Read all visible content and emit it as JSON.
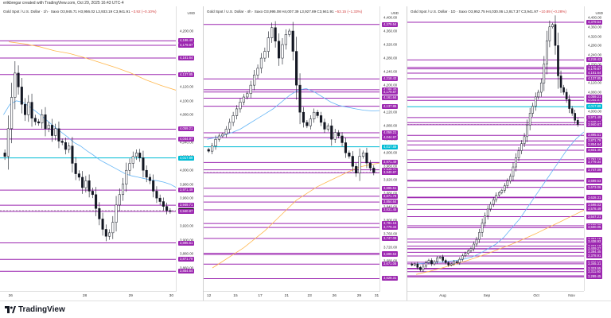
{
  "header": {
    "watermark": "erikbregar created with TradingView.com, Oct 29, 2025 16:43 UTC-4"
  },
  "footer": {
    "logo_text": "TradingView"
  },
  "colors": {
    "level_line": "#9c27b0",
    "level_badge": "#9c27b0",
    "price_badge": "#000000",
    "cyan_level": "#00bcd4",
    "ma_blue": "#64b5f6",
    "ma_orange": "#ffb74d",
    "candle": "#131722"
  },
  "panes": [
    {
      "title_symbol": "Gold Spot / U.S. Dollar · 1h · Saxo",
      "title_values": "O3,945.71 H3,956.02 L3,933.19 C3,941.91",
      "title_change": "−3.92 (−0.10%)",
      "currency": "USD",
      "y_min": 3840,
      "y_max": 4220,
      "yticks": [
        "4,200.00",
        "4,180.00",
        "4,160.00",
        "4,140.00",
        "4,120.00",
        "4,100.00",
        "4,080.00",
        "4,060.00",
        "4,040.00",
        "4,020.00",
        "4,000.00",
        "3,980.00",
        "3,960.00",
        "3,940.00",
        "3,920.00",
        "3,900.00",
        "3,880.00",
        "3,860.00"
      ],
      "ytick_values": [
        4200,
        4180,
        4160,
        4140,
        4120,
        4100,
        4080,
        4060,
        4040,
        4020,
        4000,
        3980,
        3960,
        3940,
        3920,
        3900,
        3880,
        3860
      ],
      "xticks": [
        "26",
        "28",
        "29",
        "30"
      ],
      "xtick_fracs": [
        0.06,
        0.48,
        0.74,
        0.97
      ],
      "levels": [
        {
          "label": "4,186.40",
          "value": 4186.4,
          "kind": "purple"
        },
        {
          "label": "4,179.87",
          "value": 4179.87,
          "kind": "purple"
        },
        {
          "label": "4,161.64",
          "value": 4161.64,
          "kind": "purple"
        },
        {
          "label": "4,137.85",
          "value": 4137.85,
          "kind": "purple"
        },
        {
          "label": "4,059.21",
          "value": 4059.21,
          "kind": "purple"
        },
        {
          "label": "4,044.97",
          "value": 4044.97,
          "kind": "purple"
        },
        {
          "label": "4,017.89",
          "value": 4017.89,
          "kind": "cyan"
        },
        {
          "label": "3,971.49",
          "value": 3971.49,
          "kind": "purple"
        },
        {
          "label": "3,949.71",
          "value": 3949.71,
          "kind": "purple"
        },
        {
          "label": "3,941.91",
          "value": 3941.91,
          "kind": "price"
        },
        {
          "label": "3,940.87",
          "value": 3940.87,
          "kind": "purple"
        },
        {
          "label": "3,895.51",
          "value": 3895.51,
          "kind": "purple"
        },
        {
          "label": "3,871.79",
          "value": 3871.79,
          "kind": "purple"
        },
        {
          "label": "3,854.64",
          "value": 3854.64,
          "kind": "purple"
        }
      ],
      "candles": [
        4020,
        4060,
        4105,
        4140,
        4120,
        4095,
        4080,
        4098,
        4075,
        4070,
        4068,
        4080,
        4060,
        4065,
        4050,
        4060,
        4042,
        4040,
        4030,
        4035,
        4010,
        3995,
        3990,
        3975,
        3985,
        3970,
        3965,
        3945,
        3930,
        3915,
        3905,
        3910,
        3925,
        3950,
        3965,
        3980,
        4000,
        4010,
        4020,
        4025,
        4018,
        4000,
        3990,
        3985,
        3970,
        3960,
        3955,
        3948,
        3942,
        3941
      ],
      "ma_blue": [
        4080,
        4095,
        4100,
        4098,
        4092,
        4085,
        4078,
        4070,
        4062,
        4055,
        4048,
        4040,
        4035,
        4028,
        4022,
        4015,
        4010,
        4005,
        4000,
        3995,
        3992,
        3990,
        3988,
        3986,
        3985,
        3983,
        3980,
        3975
      ],
      "ma_orange": [
        4185,
        4182,
        4178,
        4172,
        4168,
        4162,
        4155,
        4148,
        4140,
        4130,
        4122,
        4115
      ]
    },
    {
      "title_symbol": "Gold Spot / U.S. Dollar · 4h · Saxo",
      "title_values": "O3,995.08 H4,007.39 L3,927.89 C3,941.91",
      "title_change": "−53.15 (−1.33%)",
      "currency": "USD",
      "y_min": 3620,
      "y_max": 4400,
      "yticks": [
        "4,400.00",
        "4,360.00",
        "4,320.00",
        "4,280.00",
        "4,240.00",
        "4,200.00",
        "4,160.00",
        "4,120.00",
        "4,080.00",
        "4,040.00",
        "4,000.00",
        "3,960.00",
        "3,920.00",
        "3,880.00",
        "3,840.00",
        "3,800.00",
        "3,760.00",
        "3,720.00",
        "3,680.00"
      ],
      "ytick_values": [
        4400,
        4360,
        4320,
        4280,
        4240,
        4200,
        4160,
        4120,
        4080,
        4040,
        4000,
        3960,
        3920,
        3880,
        3840,
        3800,
        3760,
        3720,
        3680
      ],
      "xticks": [
        "12",
        "15",
        "17",
        "21",
        "23",
        "26",
        "29",
        "31"
      ],
      "xtick_fracs": [
        0.03,
        0.18,
        0.32,
        0.47,
        0.6,
        0.74,
        0.88,
        0.98
      ],
      "levels": [
        {
          "label": "4,379.54",
          "value": 4379.54,
          "kind": "purple"
        },
        {
          "label": "4,218.42",
          "value": 4218.42,
          "kind": "purple"
        },
        {
          "label": "4,186.40",
          "value": 4186.4,
          "kind": "purple"
        },
        {
          "label": "4,179.87",
          "value": 4179.87,
          "kind": "purple"
        },
        {
          "label": "4,161.64",
          "value": 4161.64,
          "kind": "purple"
        },
        {
          "label": "4,137.85",
          "value": 4137.85,
          "kind": "purple"
        },
        {
          "label": "4,059.21",
          "value": 4059.21,
          "kind": "purple"
        },
        {
          "label": "4,044.97",
          "value": 4044.97,
          "kind": "purple"
        },
        {
          "label": "4,017.89",
          "value": 4017.89,
          "kind": "cyan"
        },
        {
          "label": "3,971.49",
          "value": 3971.49,
          "kind": "purple"
        },
        {
          "label": "3,949.71",
          "value": 3949.71,
          "kind": "purple"
        },
        {
          "label": "3,941.91",
          "value": 3941.91,
          "kind": "price"
        },
        {
          "label": "3,940.87",
          "value": 3940.87,
          "kind": "purple"
        },
        {
          "label": "3,895.51",
          "value": 3895.51,
          "kind": "purple"
        },
        {
          "label": "3,871.79",
          "value": 3871.79,
          "kind": "purple"
        },
        {
          "label": "3,854.64",
          "value": 3854.64,
          "kind": "purple"
        },
        {
          "label": "3,831.45",
          "value": 3831.45,
          "kind": "purple"
        },
        {
          "label": "3,791.16",
          "value": 3791.16,
          "kind": "purple"
        },
        {
          "label": "3,779.34",
          "value": 3779.34,
          "kind": "purple"
        },
        {
          "label": "3,747.09",
          "value": 3747.09,
          "kind": "purple"
        },
        {
          "label": "3,703.02",
          "value": 3703.02,
          "kind": "purple"
        },
        {
          "label": "3,699.53",
          "value": 3699.53,
          "kind": "purple"
        },
        {
          "label": "3,671.06",
          "value": 3671.06,
          "kind": "purple"
        },
        {
          "label": "3,628.31",
          "value": 3628.31,
          "kind": "purple"
        }
      ],
      "candles": [
        4005,
        4020,
        4040,
        4050,
        4055,
        4070,
        4090,
        4110,
        4130,
        4150,
        4165,
        4175,
        4200,
        4230,
        4250,
        4280,
        4300,
        4340,
        4370,
        4330,
        4280,
        4320,
        4350,
        4360,
        4300,
        4200,
        4120,
        4090,
        4080,
        4100,
        4120,
        4110,
        4090,
        4070,
        4080,
        4040,
        4060,
        4050,
        4030,
        4000,
        3990,
        3960,
        3940,
        3990,
        4000,
        3970,
        3955,
        3942
      ],
      "ma_blue": [
        4040,
        4045,
        4052,
        4060,
        4070,
        4085,
        4100,
        4115,
        4130,
        4150,
        4170,
        4185,
        4190,
        4180,
        4165,
        4150,
        4140,
        4135,
        4130,
        4126,
        4124,
        4125
      ],
      "ma_orange": [
        3660,
        3680,
        3700,
        3720,
        3745,
        3770,
        3800,
        3830,
        3860,
        3880,
        3900,
        3915,
        3930,
        3945,
        3958,
        3965,
        3970
      ]
    },
    {
      "title_symbol": "Gold Spot / U.S. Dollar · 1D · Saxo",
      "title_values": "O3,952.75 H4,030.06 L3,917.37 C3,941.97",
      "title_change": "−10.89 (−0.28%)",
      "currency": "USD",
      "y_min": 3270,
      "y_max": 4400,
      "yticks": [
        "4,400.00",
        "4,360.00",
        "4,320.00",
        "4,280.00",
        "4,240.00",
        "4,200.00",
        "4,160.00",
        "4,120.00",
        "4,080.00",
        "4,040.00",
        "4,000.00"
      ],
      "ytick_values": [
        4400,
        4360,
        4320,
        4280,
        4240,
        4200,
        4160,
        4120,
        4080,
        4040,
        4000
      ],
      "xticks": [
        "Aug",
        "Sep",
        "Oct",
        "Nov"
      ],
      "xtick_fracs": [
        0.2,
        0.45,
        0.73,
        0.93
      ],
      "levels": [
        {
          "label": "4,379.54",
          "value": 4379.54,
          "kind": "purple"
        },
        {
          "label": "4,218.42",
          "value": 4218.42,
          "kind": "purple"
        },
        {
          "label": "4,186.40",
          "value": 4186.4,
          "kind": "purple"
        },
        {
          "label": "4,179.87",
          "value": 4179.87,
          "kind": "purple"
        },
        {
          "label": "4,161.64",
          "value": 4161.64,
          "kind": "purple"
        },
        {
          "label": "4,137.85",
          "value": 4137.85,
          "kind": "purple"
        },
        {
          "label": "4,044.97",
          "value": 4044.97,
          "kind": "purple"
        },
        {
          "label": "4,059.21",
          "value": 4059.21,
          "kind": "purple"
        },
        {
          "label": "4,017.89",
          "value": 4017.89,
          "kind": "cyan"
        },
        {
          "label": "3,971.49",
          "value": 3971.49,
          "kind": "purple"
        },
        {
          "label": "3,949.71",
          "value": 3949.71,
          "kind": "purple"
        },
        {
          "label": "3,941.97",
          "value": 3941.97,
          "kind": "price"
        },
        {
          "label": "3,940.87",
          "value": 3940.87,
          "kind": "purple"
        },
        {
          "label": "3,895.51",
          "value": 3895.51,
          "kind": "purple"
        },
        {
          "label": "3,871.79",
          "value": 3871.79,
          "kind": "purple"
        },
        {
          "label": "3,854.64",
          "value": 3854.64,
          "kind": "purple"
        },
        {
          "label": "3,831.45",
          "value": 3831.45,
          "kind": "purple"
        },
        {
          "label": "3,791.16",
          "value": 3791.16,
          "kind": "purple"
        },
        {
          "label": "3,779.34",
          "value": 3779.34,
          "kind": "purple"
        },
        {
          "label": "3,747.09",
          "value": 3747.09,
          "kind": "purple"
        },
        {
          "label": "3,703.02",
          "value": 3703.02,
          "kind": "purple"
        },
        {
          "label": "3,699.53",
          "value": 3699.53,
          "kind": "purple"
        },
        {
          "label": "3,673.06",
          "value": 3673.06,
          "kind": "purple"
        },
        {
          "label": "3,630.93",
          "value": 3630.93,
          "kind": "purple"
        },
        {
          "label": "3,628.31",
          "value": 3628.31,
          "kind": "purple"
        },
        {
          "label": "3,598.03",
          "value": 3598.03,
          "kind": "purple"
        },
        {
          "label": "3,578.49",
          "value": 3578.49,
          "kind": "purple"
        },
        {
          "label": "3,547.21",
          "value": 3547.21,
          "kind": "purple"
        },
        {
          "label": "3,508.20",
          "value": 3508.2,
          "kind": "purple"
        },
        {
          "label": "3,500.05",
          "value": 3500.05,
          "kind": "purple"
        },
        {
          "label": "3,451.15",
          "value": 3451.15,
          "kind": "purple"
        },
        {
          "label": "3,438.93",
          "value": 3438.93,
          "kind": "purple"
        },
        {
          "label": "3,421.10",
          "value": 3421.1,
          "kind": "purple"
        },
        {
          "label": "3,410.50",
          "value": 3410.5,
          "kind": "purple"
        },
        {
          "label": "3,409.27",
          "value": 3409.27,
          "kind": "purple"
        },
        {
          "label": "3,394.45",
          "value": 3394.45,
          "kind": "purple"
        },
        {
          "label": "3,378.91",
          "value": 3378.91,
          "kind": "purple"
        },
        {
          "label": "3,352.18",
          "value": 3352.18,
          "kind": "purple"
        },
        {
          "label": "3,345.31",
          "value": 3345.31,
          "kind": "purple"
        },
        {
          "label": "3,326.28",
          "value": 3326.28,
          "kind": "purple"
        },
        {
          "label": "3,323.55",
          "value": 3323.55,
          "kind": "purple"
        },
        {
          "label": "3,311.60",
          "value": 3311.6,
          "kind": "purple"
        },
        {
          "label": "3,293.99",
          "value": 3293.99,
          "kind": "purple"
        },
        {
          "label": "3,289.45",
          "value": 3289.45,
          "kind": "purple"
        }
      ],
      "candles": [
        3340,
        3345,
        3330,
        3320,
        3335,
        3350,
        3360,
        3345,
        3355,
        3370,
        3375,
        3360,
        3350,
        3340,
        3345,
        3355,
        3350,
        3365,
        3380,
        3390,
        3400,
        3410,
        3430,
        3450,
        3480,
        3520,
        3550,
        3580,
        3600,
        3620,
        3640,
        3650,
        3660,
        3680,
        3700,
        3720,
        3760,
        3800,
        3830,
        3860,
        3890,
        3940,
        3990,
        4020,
        4060,
        4080,
        4120,
        4200,
        4300,
        4360,
        4370,
        4280,
        4150,
        4100,
        4080,
        4050,
        4010,
        3990,
        3960,
        3942
      ],
      "ma_blue": [
        3345,
        3348,
        3350,
        3352,
        3356,
        3360,
        3366,
        3375,
        3390,
        3410,
        3430,
        3460,
        3500,
        3540,
        3590,
        3640,
        3690,
        3740,
        3790,
        3840,
        3880,
        3910
      ],
      "ma_orange": [
        3300,
        3312,
        3325,
        3340,
        3355,
        3372,
        3390,
        3410,
        3430,
        3452,
        3475,
        3500,
        3525,
        3550,
        3575
      ]
    }
  ]
}
